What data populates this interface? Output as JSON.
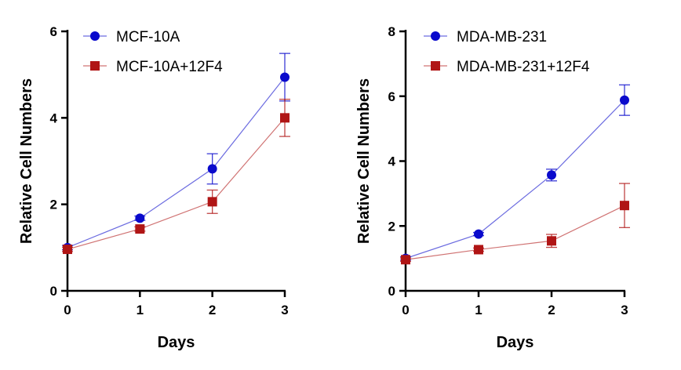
{
  "chart_data": [
    {
      "type": "line",
      "title": "",
      "xlabel": "Days",
      "ylabel": "Relative Cell Numbers",
      "x": [
        0,
        1,
        2,
        3
      ],
      "xticks": [
        0,
        1,
        2,
        3
      ],
      "xlim": [
        0,
        3
      ],
      "yticks": [
        0,
        2,
        4,
        6
      ],
      "ylim": [
        0,
        6
      ],
      "grid": false,
      "legend": "top-left",
      "series": [
        {
          "name": "MCF-10A",
          "color": "#0a0acc",
          "marker": "circle",
          "values": [
            1.0,
            1.68,
            2.82,
            4.94
          ],
          "errors": [
            0.05,
            0.05,
            0.35,
            0.55
          ]
        },
        {
          "name": "MCF-10A+12F4",
          "color": "#b01515",
          "marker": "square",
          "values": [
            0.96,
            1.43,
            2.06,
            4.0
          ],
          "errors": [
            0.05,
            0.05,
            0.27,
            0.43
          ]
        }
      ]
    },
    {
      "type": "line",
      "title": "",
      "xlabel": "Days",
      "ylabel": "Relative Cell Numbers",
      "x": [
        0,
        1,
        2,
        3
      ],
      "xticks": [
        0,
        1,
        2,
        3
      ],
      "xlim": [
        0,
        3
      ],
      "yticks": [
        0,
        2,
        4,
        6,
        8
      ],
      "ylim": [
        0,
        8
      ],
      "grid": false,
      "legend": "top-left",
      "series": [
        {
          "name": "MDA-MB-231",
          "color": "#0a0acc",
          "marker": "circle",
          "values": [
            1.0,
            1.75,
            3.57,
            5.88
          ],
          "errors": [
            0.05,
            0.05,
            0.18,
            0.47
          ]
        },
        {
          "name": "MDA-MB-231+12F4",
          "color": "#b01515",
          "marker": "square",
          "values": [
            0.96,
            1.27,
            1.54,
            2.63
          ],
          "errors": [
            0.05,
            0.05,
            0.2,
            0.68
          ]
        }
      ]
    }
  ]
}
